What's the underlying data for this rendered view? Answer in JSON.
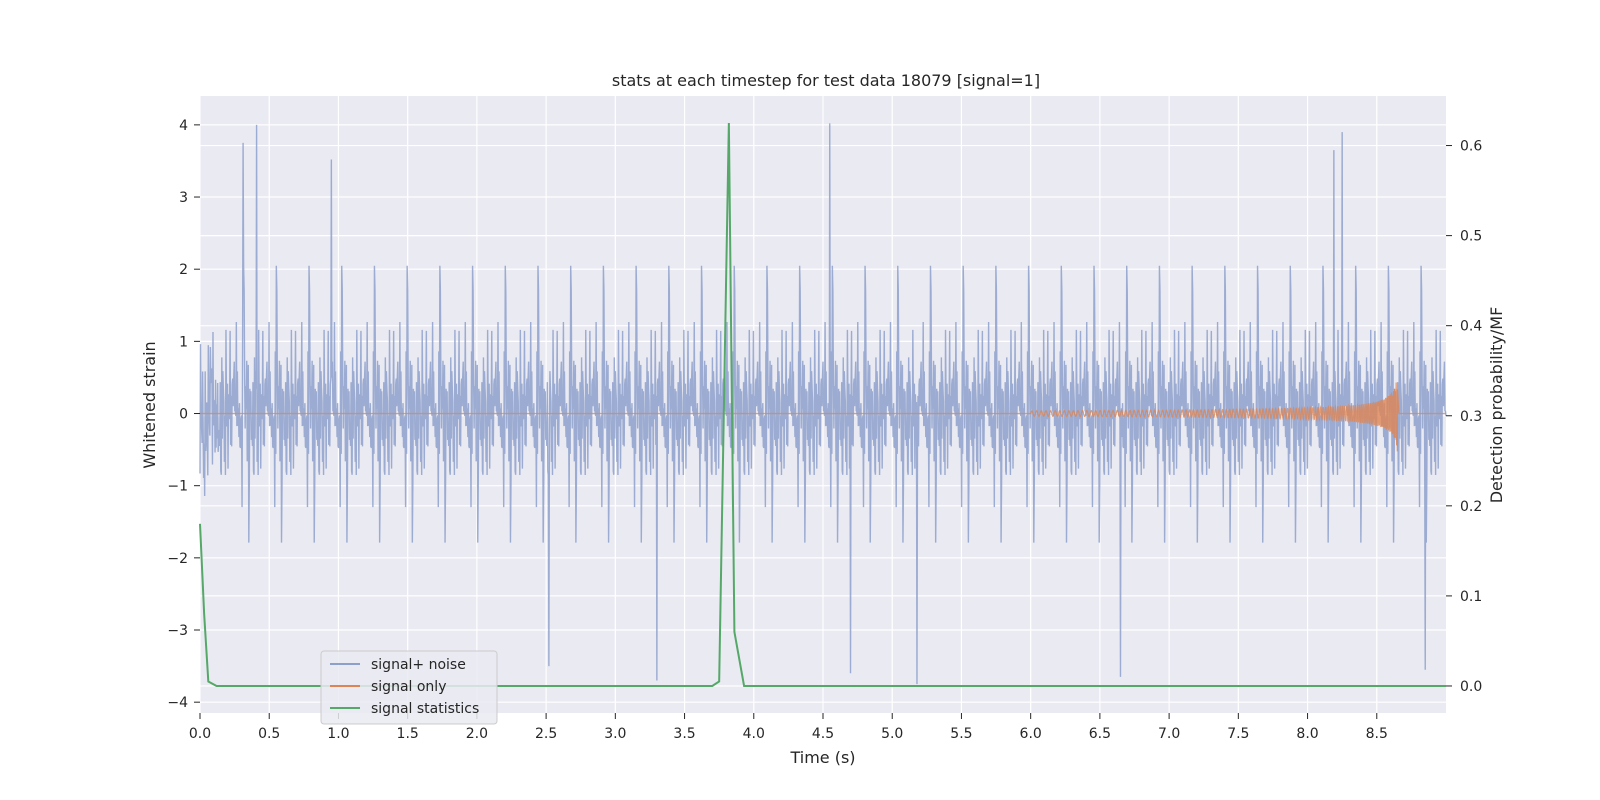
{
  "chart_data": {
    "type": "line",
    "title": "stats at each timestep for test data 18079 [signal=1]",
    "xlabel": "Time (s)",
    "ylabel_left": "Whitened strain",
    "ylabel_right": "Detection probability/MF",
    "xlim": [
      0.0,
      9.0
    ],
    "ylim_left": [
      -4.15,
      4.4
    ],
    "ylim_right": [
      -0.03,
      0.655
    ],
    "xticks": [
      "0.0",
      "0.5",
      "1.0",
      "1.5",
      "2.0",
      "2.5",
      "3.0",
      "3.5",
      "4.0",
      "4.5",
      "5.0",
      "5.5",
      "6.0",
      "6.5",
      "7.0",
      "7.5",
      "8.0",
      "8.5"
    ],
    "xtick_values": [
      0.0,
      0.5,
      1.0,
      1.5,
      2.0,
      2.5,
      3.0,
      3.5,
      4.0,
      4.5,
      5.0,
      5.5,
      6.0,
      6.5,
      7.0,
      7.5,
      8.0,
      8.5
    ],
    "yticks_left": [
      "−4",
      "−3",
      "−2",
      "−1",
      "0",
      "1",
      "2",
      "3",
      "4"
    ],
    "ytick_values_left": [
      -4,
      -3,
      -2,
      -1,
      0,
      1,
      2,
      3,
      4
    ],
    "yticks_right": [
      "0.0",
      "0.1",
      "0.2",
      "0.3",
      "0.4",
      "0.5",
      "0.6"
    ],
    "ytick_values_right": [
      0.0,
      0.1,
      0.2,
      0.3,
      0.4,
      0.5,
      0.6
    ],
    "grid": true,
    "legend_position": "bottom-left",
    "series": [
      {
        "name": "signal+ noise",
        "axis": "left",
        "color": "#8da0cb",
        "style": "dense noise trace",
        "envelope": {
          "typical_max": 2.3,
          "typical_min": -2.2,
          "peak_max": 4.02,
          "peak_min": -3.75
        },
        "peaks": [
          {
            "x": 0.31,
            "y": 3.75
          },
          {
            "x": 0.41,
            "y": 4.0
          },
          {
            "x": 0.95,
            "y": 3.52
          },
          {
            "x": 4.55,
            "y": 4.02
          },
          {
            "x": 8.19,
            "y": 3.65
          },
          {
            "x": 8.25,
            "y": 3.9
          },
          {
            "x": 3.3,
            "y": -3.7
          },
          {
            "x": 5.18,
            "y": -3.75
          },
          {
            "x": 6.65,
            "y": -3.65
          },
          {
            "x": 8.85,
            "y": -3.55
          },
          {
            "x": 2.52,
            "y": -3.5
          },
          {
            "x": 4.7,
            "y": -3.6
          }
        ]
      },
      {
        "name": "signal only",
        "axis": "left",
        "color": "#dd8452",
        "style": "chirp growing toward merger",
        "chirp": {
          "start_x": 6.0,
          "end_x": 8.65,
          "max_amplitude": 0.55
        }
      },
      {
        "name": "signal statistics",
        "axis": "right",
        "color": "#55a868",
        "x": [
          0.0,
          0.03,
          0.06,
          0.12,
          3.7,
          3.75,
          3.8,
          3.82,
          3.86,
          3.93,
          9.0
        ],
        "y": [
          0.18,
          0.08,
          0.005,
          0.0,
          0.0,
          0.005,
          0.45,
          0.625,
          0.06,
          0.0,
          0.0
        ]
      }
    ]
  }
}
